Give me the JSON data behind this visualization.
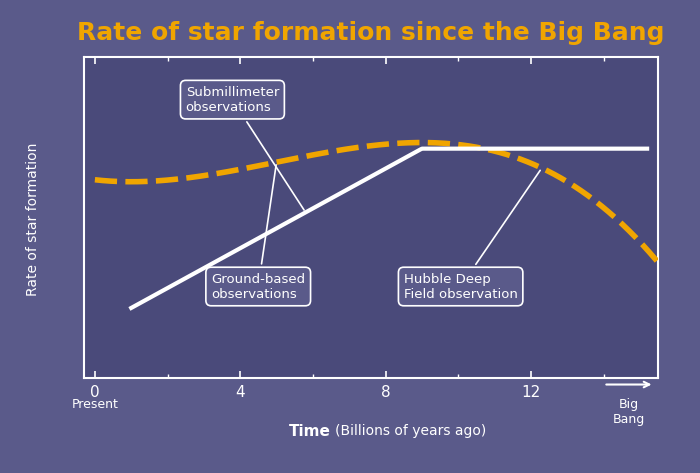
{
  "title": "Rate of star formation since the Big Bang",
  "title_color": "#f0a500",
  "title_fontsize": 18,
  "bg_color": "#5a5a8a",
  "plot_bg_color": "#4a4a7a",
  "axis_color": "#ffffff",
  "ylabel": "Rate of star formation",
  "xtick_values": [
    0,
    4,
    8,
    12
  ],
  "xtick_labels": [
    "0",
    "4",
    "8",
    "12"
  ],
  "submillimeter_label": "Submillimeter\nobservations",
  "ground_label": "Ground-based\nobservations",
  "hubble_label": "Hubble Deep\nField observation",
  "orange_color": "#f0a500",
  "white_color": "#ffffff",
  "annotation_box_color": "#5a5a8a",
  "annotation_text_color": "#ffffff",
  "annotation_box_edge_color": "#ffffff"
}
